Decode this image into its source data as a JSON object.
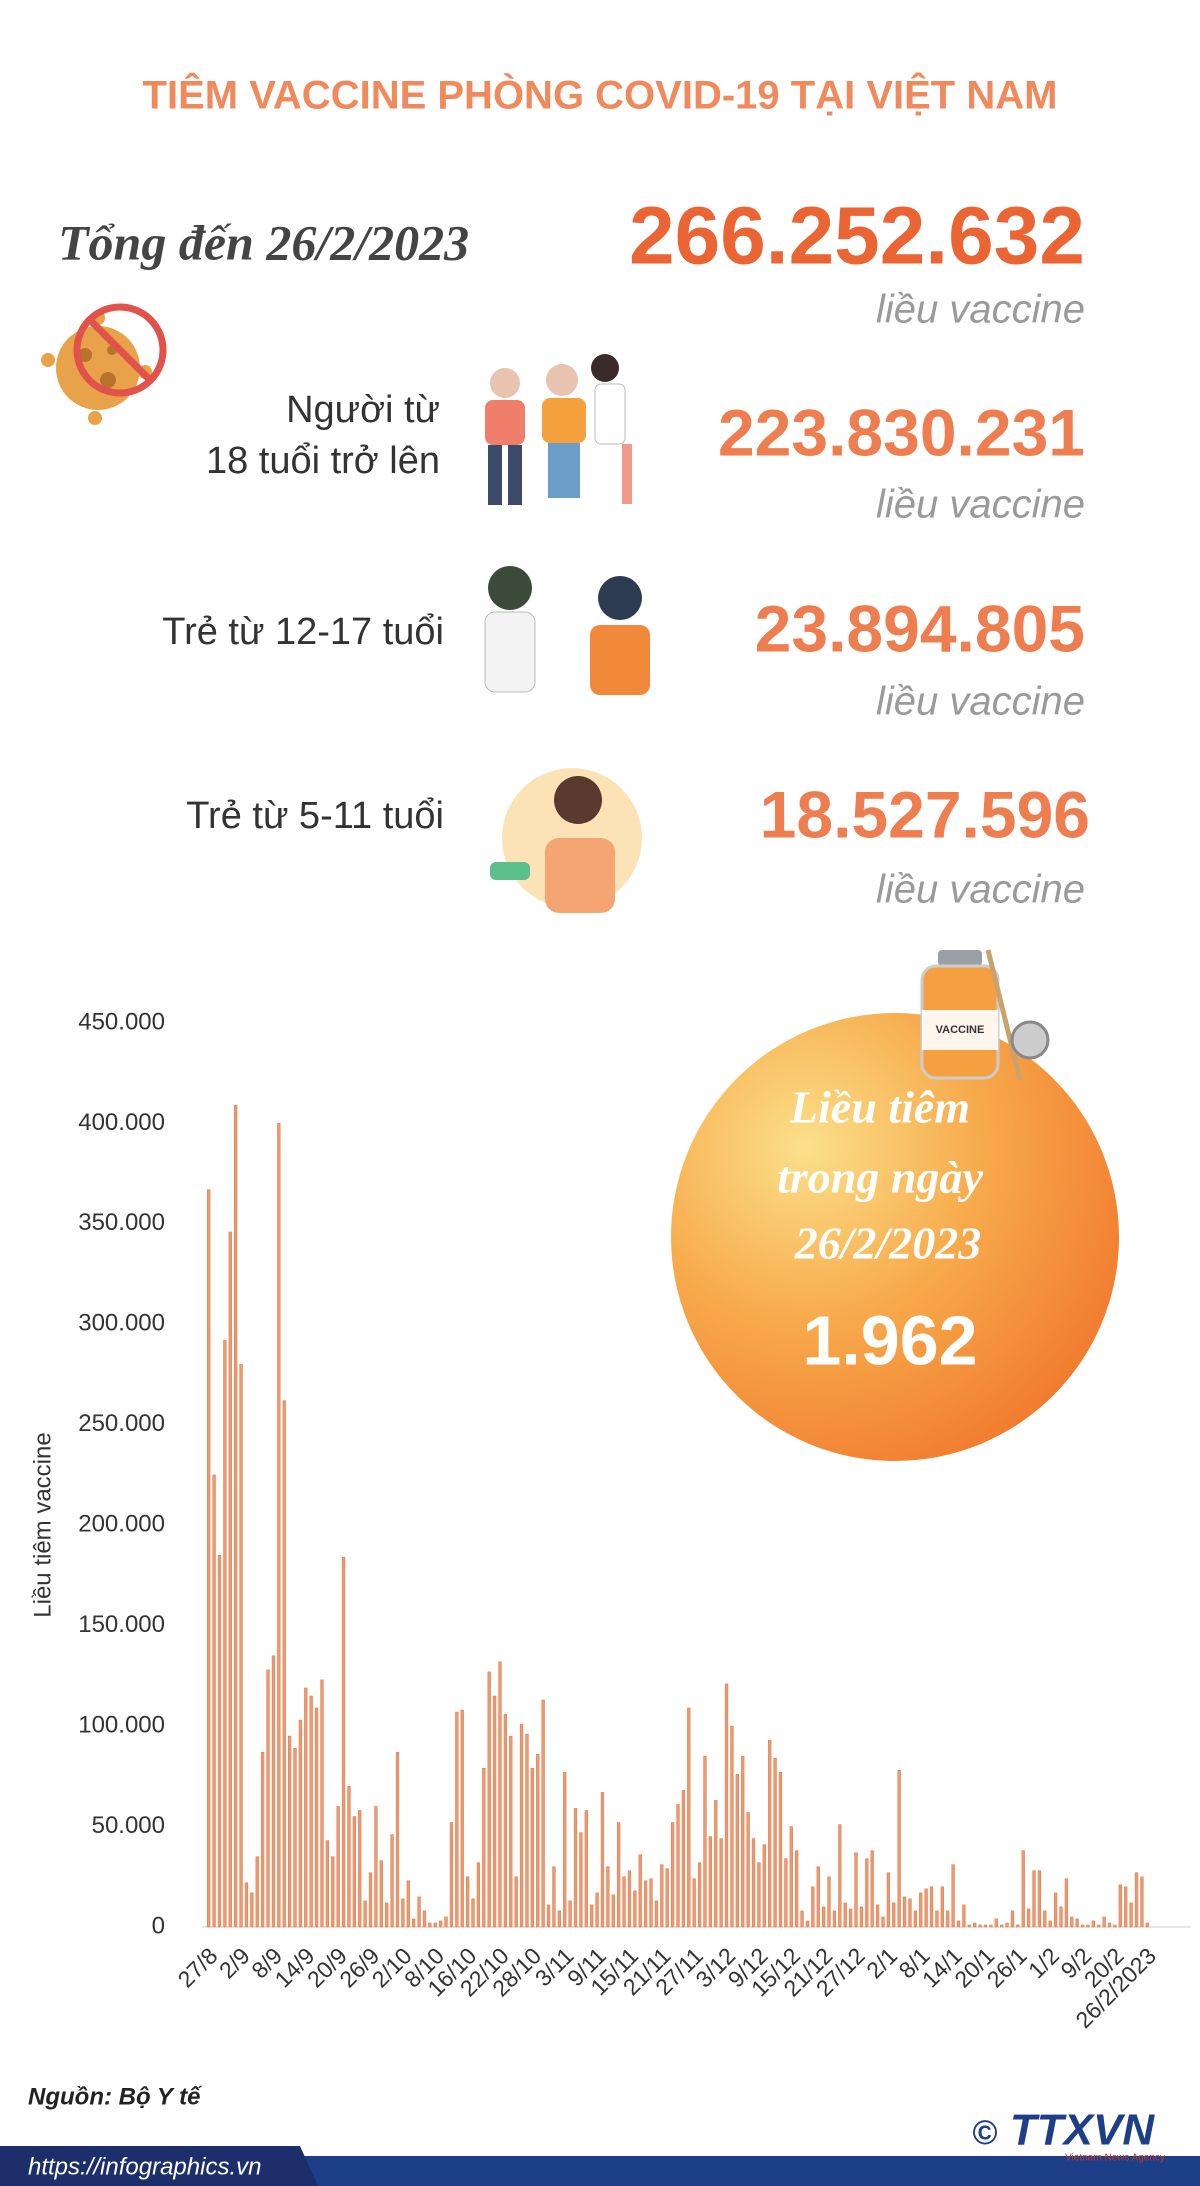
{
  "title": "TIÊM VACCINE PHÒNG COVID-19 TẠI VIỆT NAM",
  "total": {
    "label": "Tổng đến 26/2/2023",
    "value": "266.252.632",
    "unit": "liều vaccine"
  },
  "groups": [
    {
      "label_lines": [
        "Người từ",
        "18 tuổi trở lên"
      ],
      "value": "223.830.231",
      "unit": "liều vaccine"
    },
    {
      "label_lines": [
        "Trẻ từ 12-17 tuổi"
      ],
      "value": "23.894.805",
      "unit": "liều vaccine"
    },
    {
      "label_lines": [
        "Trẻ từ 5-11 tuổi"
      ],
      "value": "18.527.596",
      "unit": "liều vaccine"
    }
  ],
  "daily": {
    "lines": [
      "Liều tiêm",
      "trong ngày",
      "26/2/2023"
    ],
    "value": "1.962"
  },
  "bottle_label": "VACCINE",
  "chart_data": {
    "type": "bar",
    "y_label": "Liều tiêm vaccine",
    "color": "#eb9a72",
    "grid": false,
    "categories": [
      "27/8",
      null,
      null,
      null,
      null,
      null,
      "2/9",
      null,
      null,
      null,
      null,
      null,
      "8/9",
      null,
      null,
      null,
      null,
      null,
      "14/9",
      null,
      null,
      null,
      null,
      null,
      "20/9",
      null,
      null,
      null,
      null,
      null,
      "26/9",
      null,
      null,
      null,
      null,
      null,
      "2/10",
      null,
      null,
      null,
      null,
      null,
      "8/10",
      null,
      null,
      null,
      null,
      null,
      "16/10",
      null,
      null,
      null,
      null,
      null,
      "22/10",
      null,
      null,
      null,
      null,
      null,
      "28/10",
      null,
      null,
      null,
      null,
      null,
      "3/11",
      null,
      null,
      null,
      null,
      null,
      "9/11",
      null,
      null,
      null,
      null,
      null,
      "15/11",
      null,
      null,
      null,
      null,
      null,
      "21/11",
      null,
      null,
      null,
      null,
      null,
      "27/11",
      null,
      null,
      null,
      null,
      null,
      "3/12",
      null,
      null,
      null,
      null,
      null,
      "9/12",
      null,
      null,
      null,
      null,
      null,
      "15/12",
      null,
      null,
      null,
      null,
      null,
      "21/12",
      null,
      null,
      null,
      null,
      null,
      "27/12",
      null,
      null,
      null,
      null,
      null,
      "2/1",
      null,
      null,
      null,
      null,
      null,
      "8/1",
      null,
      null,
      null,
      null,
      null,
      "14/1",
      null,
      null,
      null,
      null,
      null,
      "20/1",
      null,
      null,
      null,
      null,
      null,
      "26/1",
      null,
      null,
      null,
      null,
      null,
      "1/2",
      null,
      null,
      null,
      null,
      null,
      "9/2",
      null,
      null,
      null,
      null,
      null,
      "20/2",
      null,
      null,
      null,
      null,
      null,
      "26/2/2023"
    ],
    "values": [
      367000,
      225000,
      185000,
      292000,
      346000,
      409000,
      280000,
      22000,
      17000,
      35000,
      87000,
      128000,
      135000,
      400000,
      262000,
      95000,
      89000,
      103000,
      119000,
      115000,
      109000,
      123000,
      43000,
      35000,
      60000,
      184000,
      70000,
      55000,
      58000,
      13000,
      27000,
      60000,
      33000,
      12000,
      46000,
      87000,
      14000,
      23000,
      4000,
      15000,
      8000,
      2000,
      2000,
      3000,
      5000,
      52000,
      107000,
      108000,
      25000,
      14000,
      32000,
      79000,
      127000,
      115000,
      132000,
      106000,
      95000,
      25000,
      101000,
      96000,
      79000,
      86000,
      113000,
      11000,
      30000,
      8000,
      77000,
      13000,
      59000,
      47000,
      58000,
      11000,
      17000,
      67000,
      30000,
      16000,
      52000,
      25000,
      28000,
      18000,
      36000,
      23000,
      24000,
      13000,
      31000,
      29000,
      52000,
      61000,
      68000,
      109000,
      24000,
      32000,
      85000,
      45000,
      63000,
      44000,
      121000,
      100000,
      76000,
      85000,
      57000,
      44000,
      32000,
      41000,
      93000,
      84000,
      77000,
      34000,
      50000,
      38000,
      8000,
      3000,
      20000,
      30000,
      10000,
      25000,
      8000,
      51000,
      12000,
      9000,
      37000,
      10000,
      34000,
      38000,
      11000,
      5000,
      27000,
      12000,
      78000,
      15000,
      14000,
      8000,
      17000,
      19000,
      20000,
      8000,
      20000,
      8000,
      31000,
      3000,
      11000,
      1000,
      2000,
      1000,
      1000,
      1000,
      4000,
      1000,
      2000,
      8000,
      1000,
      38000,
      9000,
      28000,
      28000,
      8000,
      3000,
      17000,
      10000,
      24000,
      5000,
      4000,
      1000,
      1000,
      3000,
      1000,
      5000,
      2000,
      1000,
      21000,
      20000,
      12000,
      27000,
      25000,
      2000
    ],
    "ylim": [
      0,
      450000
    ],
    "yticks": [
      0,
      {
        "value": 50000,
        "label": "50.000"
      },
      {
        "value": 100000,
        "label": "100.000"
      },
      {
        "value": 150000,
        "label": "150.000"
      },
      {
        "value": 200000,
        "label": "200.000"
      },
      {
        "value": 250000,
        "label": "250.000"
      },
      {
        "value": 300000,
        "label": "300.000"
      },
      {
        "value": 350000,
        "label": "350.000"
      },
      {
        "value": 400000,
        "label": "400.000"
      },
      {
        "value": 450000,
        "label": "450.000"
      }
    ]
  },
  "source": "Nguồn: Bộ Y tế",
  "url": "https://infographics.vn",
  "copyright": "©",
  "logo": "TTXVN",
  "logo_sub": "Vietnam News Agency"
}
